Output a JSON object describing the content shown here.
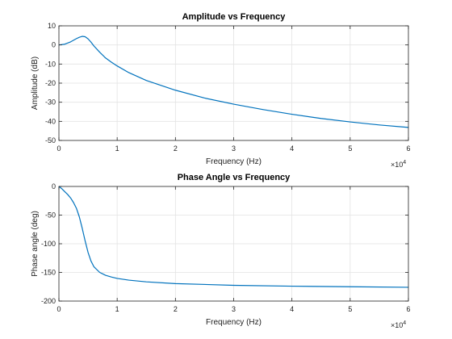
{
  "chart_data": [
    {
      "type": "line",
      "title": "Amplitude vs Frequency",
      "xlabel": "Frequency (Hz)",
      "ylabel": "Amplitude (dB)",
      "xlim": [
        0,
        60000
      ],
      "ylim": [
        -50,
        10
      ],
      "x_ticks": [
        0,
        10000,
        20000,
        30000,
        40000,
        50000,
        60000
      ],
      "x_tick_labels": [
        "0",
        "1",
        "2",
        "3",
        "4",
        "5",
        "6"
      ],
      "y_ticks": [
        -50,
        -40,
        -30,
        -20,
        -10,
        0,
        10
      ],
      "y_tick_labels": [
        "-50",
        "-40",
        "-30",
        "-20",
        "-10",
        "0",
        "10"
      ],
      "x_multiplier": {
        "base": "×10",
        "exponent": "4"
      },
      "grid": true,
      "series": [
        {
          "color": "#0072BD",
          "x": [
            0,
            1000,
            2000,
            3000,
            3500,
            4000,
            4500,
            5000,
            5500,
            6000,
            7000,
            8000,
            9000,
            10000,
            12000,
            15000,
            20000,
            25000,
            30000,
            35000,
            40000,
            45000,
            50000,
            55000,
            60000
          ],
          "y": [
            0,
            0.4,
            1.6,
            3.3,
            4.0,
            4.5,
            4.3,
            3.2,
            1.5,
            -0.5,
            -3.8,
            -6.8,
            -9.0,
            -11.0,
            -14.5,
            -18.6,
            -23.7,
            -27.8,
            -31.0,
            -33.8,
            -36.3,
            -38.5,
            -40.3,
            -41.9,
            -43.2
          ]
        }
      ]
    },
    {
      "type": "line",
      "title": "Phase Angle vs Frequency",
      "xlabel": "Frequency (Hz)",
      "ylabel": "Phase angle (deg)",
      "xlim": [
        0,
        60000
      ],
      "ylim": [
        -200,
        0
      ],
      "x_ticks": [
        0,
        10000,
        20000,
        30000,
        40000,
        50000,
        60000
      ],
      "x_tick_labels": [
        "0",
        "1",
        "2",
        "3",
        "4",
        "5",
        "6"
      ],
      "y_ticks": [
        -200,
        -150,
        -100,
        -50,
        0
      ],
      "y_tick_labels": [
        "-200",
        "-150",
        "-100",
        "-50",
        "0"
      ],
      "x_multiplier": {
        "base": "×10",
        "exponent": "4"
      },
      "grid": true,
      "series": [
        {
          "color": "#0072BD",
          "x": [
            0,
            500,
            1000,
            1500,
            2000,
            2500,
            3000,
            3500,
            4000,
            4500,
            5000,
            5500,
            6000,
            7000,
            8000,
            9000,
            10000,
            12000,
            15000,
            20000,
            30000,
            40000,
            50000,
            60000
          ],
          "y": [
            0,
            -4,
            -9,
            -14,
            -20,
            -28,
            -38,
            -53,
            -73,
            -95,
            -115,
            -130,
            -140,
            -150,
            -155,
            -158,
            -160.5,
            -163.5,
            -166.5,
            -169.5,
            -172.5,
            -174,
            -175,
            -176
          ]
        }
      ]
    }
  ]
}
